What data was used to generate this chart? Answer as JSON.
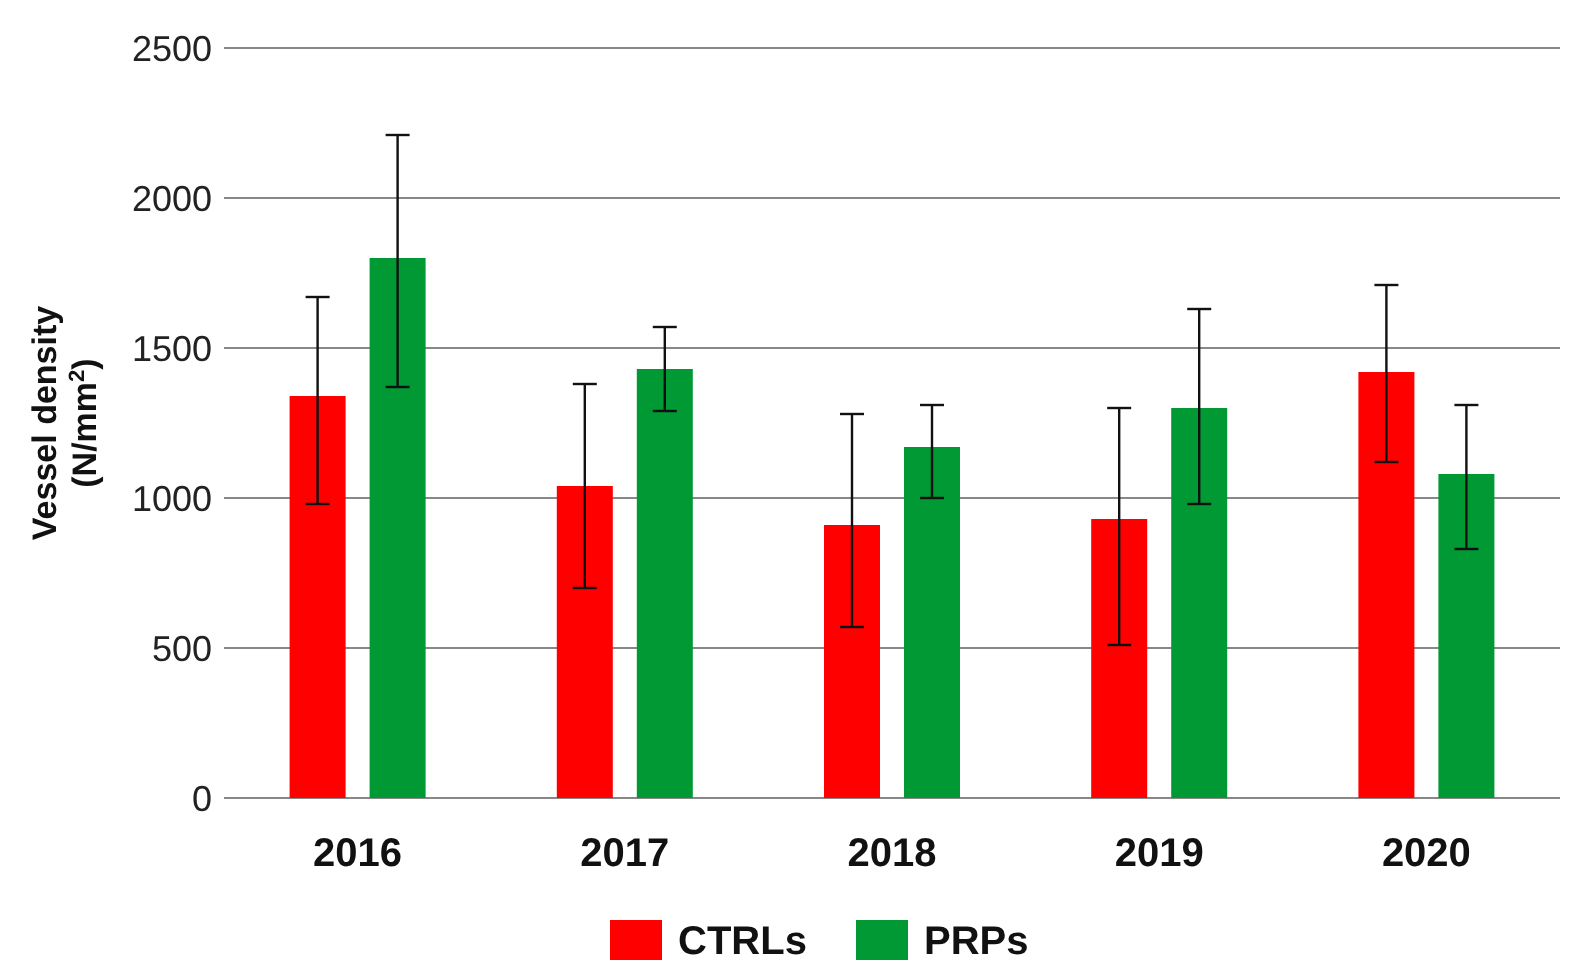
{
  "chart_data": {
    "type": "bar",
    "ylabel": "Vessel density\n(N/mm$^{2}$)",
    "categories": [
      "2016",
      "2017",
      "2018",
      "2019",
      "2020"
    ],
    "series": [
      {
        "name": "CTRLs",
        "color": "#ff0000",
        "values": [
          1340,
          1040,
          910,
          930,
          1420
        ],
        "errors": [
          [
            980,
            1670
          ],
          [
            700,
            1380
          ],
          [
            570,
            1280
          ],
          [
            510,
            1300
          ],
          [
            1120,
            1710
          ]
        ]
      },
      {
        "name": "PRPs",
        "color": "#009933",
        "values": [
          1800,
          1430,
          1170,
          1300,
          1080
        ],
        "errors": [
          [
            1370,
            2210
          ],
          [
            1290,
            1570
          ],
          [
            1000,
            1310
          ],
          [
            980,
            1630
          ],
          [
            830,
            1310
          ]
        ]
      }
    ],
    "ylim": [
      0,
      2500
    ],
    "yticks": [
      0,
      500,
      1000,
      1500,
      2000,
      2500
    ],
    "grid": "y",
    "legend": "bottom"
  }
}
